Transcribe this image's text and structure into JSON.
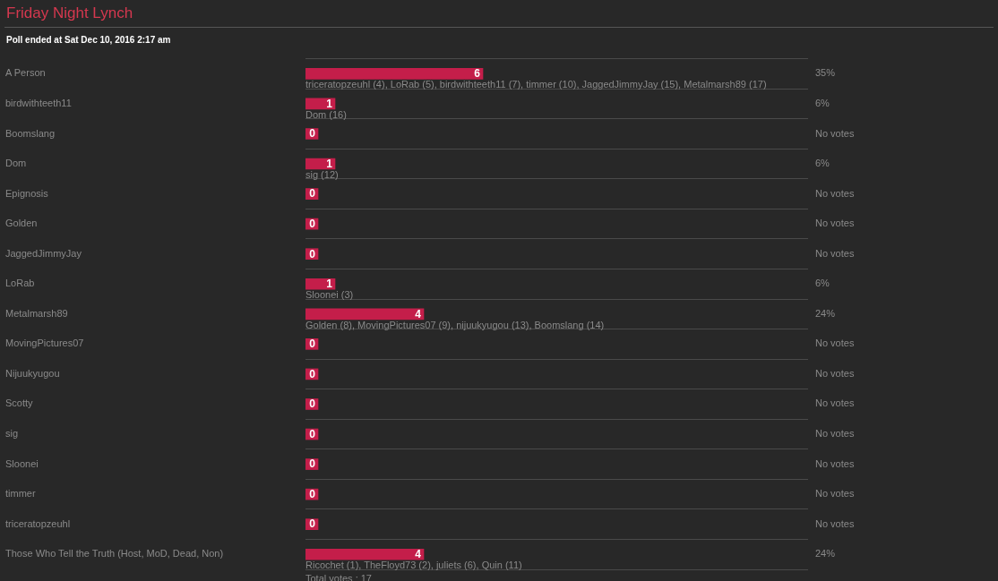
{
  "chart_data": {
    "type": "bar",
    "orientation": "horizontal",
    "title": "Friday Night Lynch",
    "subtitle": "Poll ended at Sat Dec 10, 2016 2:17 am",
    "categories": [
      "A Person",
      "birdwithteeth11",
      "Boomslang",
      "Dom",
      "Epignosis",
      "Golden",
      "JaggedJimmyJay",
      "LoRab",
      "Metalmarsh89",
      "MovingPictures07",
      "Nijuukyugou",
      "Scotty",
      "sig",
      "Sloonei",
      "timmer",
      "triceratopzeuhl",
      "Those Who Tell the Truth (Host, MoD, Dead, Non)"
    ],
    "values": [
      6,
      1,
      0,
      1,
      0,
      0,
      0,
      1,
      4,
      0,
      0,
      0,
      0,
      0,
      0,
      0,
      4
    ],
    "color": "#c41e4a",
    "data_labels": true,
    "y2_categories": [
      "35%",
      "6%",
      "No votes",
      "6%",
      "No votes",
      "No votes",
      "No votes",
      "6%",
      "24%",
      "No votes",
      "No votes",
      "No votes",
      "No votes",
      "No votes",
      "No votes",
      "No votes",
      "24%"
    ],
    "grid": "y",
    "legend": false,
    "annotations": [
      {
        "text": "triceratopzeuhl (4), LoRab (5), birdwithteeth11 (7), timmer (10), JaggedJimmyJay (15), Metalmarsh89 (17)",
        "x": 6,
        "y": "A Person"
      },
      {
        "text": "Dom (16)",
        "x": 1,
        "y": "birdwithteeth11"
      },
      {
        "text": "sig (12)",
        "x": 1,
        "y": "Dom"
      },
      {
        "text": "Sloonei (3)",
        "x": 1,
        "y": "LoRab"
      },
      {
        "text": "Golden (8), MovingPictures07 (9), nijuukyugou (13), Boomslang (14)",
        "x": 4,
        "y": "Metalmarsh89"
      },
      {
        "text": "Ricochet (1), TheFloyd73 (2), juliets (6), Quin (11)",
        "x": 4,
        "y": "Those Who Tell the Truth (Host, MoD, Dead, Non)"
      },
      "Total votes : 17"
    ]
  }
}
